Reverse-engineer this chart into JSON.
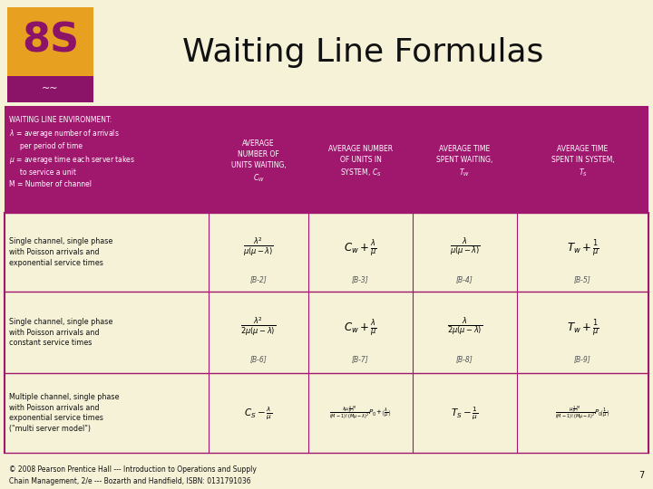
{
  "bg_color": "#f5f2d8",
  "title": "Waiting Line Formulas",
  "title_color": "#1a1a1a",
  "title_fontsize": 22,
  "header_bg": "#a0176e",
  "table_bg": "#f5f2d8",
  "logo_orange": "#e8a020",
  "logo_purple": "#8b1468",
  "logo_text": "8S",
  "footer_text": "© 2008 Pearson Prentice Hall --- Introduction to Operations and Supply\nChain Management, 2/e --- Bozarth and Handfield, ISBN: 0131791036",
  "footer_page": "7"
}
